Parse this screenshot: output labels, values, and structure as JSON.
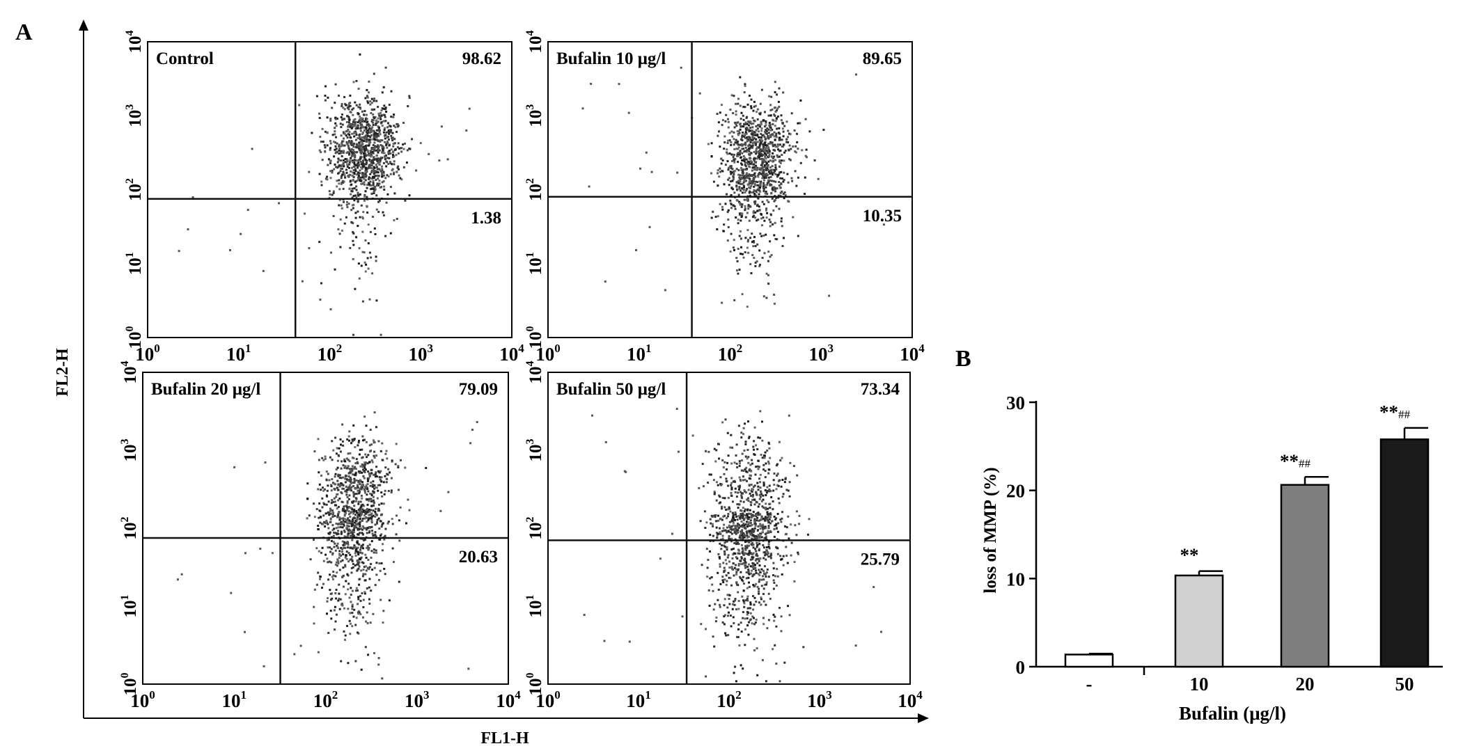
{
  "figure": {
    "panel_a_letter": "A",
    "panel_b_letter": "B",
    "panel_a_xlabel": "FL1-H",
    "panel_a_ylabel": "FL2-H"
  },
  "chart_data": [
    {
      "type": "scatter",
      "panel": "A",
      "xlabel": "FL1-H",
      "ylabel": "FL2-H",
      "x_scale": "log",
      "y_scale": "log",
      "xlim": [
        1,
        10000
      ],
      "ylim": [
        1,
        10000
      ],
      "x_ticks": [
        {
          "base": "10",
          "exp": "0"
        },
        {
          "base": "10",
          "exp": "1"
        },
        {
          "base": "10",
          "exp": "2"
        },
        {
          "base": "10",
          "exp": "3"
        },
        {
          "base": "10",
          "exp": "4"
        }
      ],
      "y_ticks": [
        {
          "base": "10",
          "exp": "0"
        },
        {
          "base": "10",
          "exp": "1"
        },
        {
          "base": "10",
          "exp": "2"
        },
        {
          "base": "10",
          "exp": "3"
        },
        {
          "base": "10",
          "exp": "4"
        }
      ],
      "subplots": [
        {
          "label": "Control",
          "upper_right_pct": "98.62",
          "lower_right_pct": "1.38",
          "gate_x": 42,
          "gate_y": 75,
          "cluster_x": 230,
          "cluster_y": 420,
          "spread_x": 0.2,
          "spread_y": 0.32,
          "tail": 0.15
        },
        {
          "label": "Bufalin 10 μg/l",
          "upper_right_pct": "89.65",
          "lower_right_pct": "10.35",
          "gate_x": 38,
          "gate_y": 80,
          "cluster_x": 195,
          "cluster_y": 380,
          "spread_x": 0.19,
          "spread_y": 0.3,
          "tail": 0.3
        },
        {
          "label": "Bufalin 20 μg/l",
          "upper_right_pct": "79.09",
          "lower_right_pct": "20.63",
          "gate_x": 32,
          "gate_y": 75,
          "cluster_x": 210,
          "cluster_y": 330,
          "spread_x": 0.2,
          "spread_y": 0.33,
          "tail": 0.45
        },
        {
          "label": "Bufalin 50 μg/l",
          "upper_right_pct": "73.34",
          "lower_right_pct": "25.79",
          "gate_x": 34,
          "gate_y": 70,
          "cluster_x": 170,
          "cluster_y": 280,
          "spread_x": 0.22,
          "spread_y": 0.38,
          "tail": 0.6
        }
      ]
    },
    {
      "type": "bar",
      "panel": "B",
      "title": "",
      "xlabel": "Bufalin (μg/l)",
      "ylabel": "loss of MMP (%)",
      "ylim": [
        0,
        30
      ],
      "y_ticks": [
        "0",
        "10",
        "20",
        "30"
      ],
      "categories": [
        "-",
        "10",
        "20",
        "50"
      ],
      "values": [
        1.38,
        10.35,
        20.63,
        25.79
      ],
      "errors": [
        0.1,
        0.5,
        0.9,
        1.3
      ],
      "bar_colors": [
        "#ffffff",
        "#d0d0d0",
        "#7f7f7f",
        "#1a1a1a"
      ],
      "annotations": [
        {
          "stars": "",
          "hashes": ""
        },
        {
          "stars": "**",
          "hashes": ""
        },
        {
          "stars": "**",
          "hashes": "##"
        },
        {
          "stars": "**",
          "hashes": "##"
        }
      ]
    }
  ]
}
